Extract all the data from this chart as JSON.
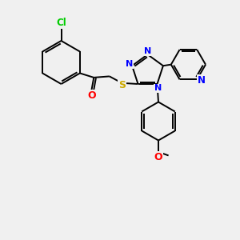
{
  "background_color": "#f0f0f0",
  "bond_color": "#000000",
  "atom_colors": {
    "Cl": "#00cc00",
    "O": "#ff0000",
    "N": "#0000ff",
    "S": "#ccaa00",
    "C": "#000000"
  },
  "figsize": [
    3.0,
    3.0
  ],
  "dpi": 100
}
